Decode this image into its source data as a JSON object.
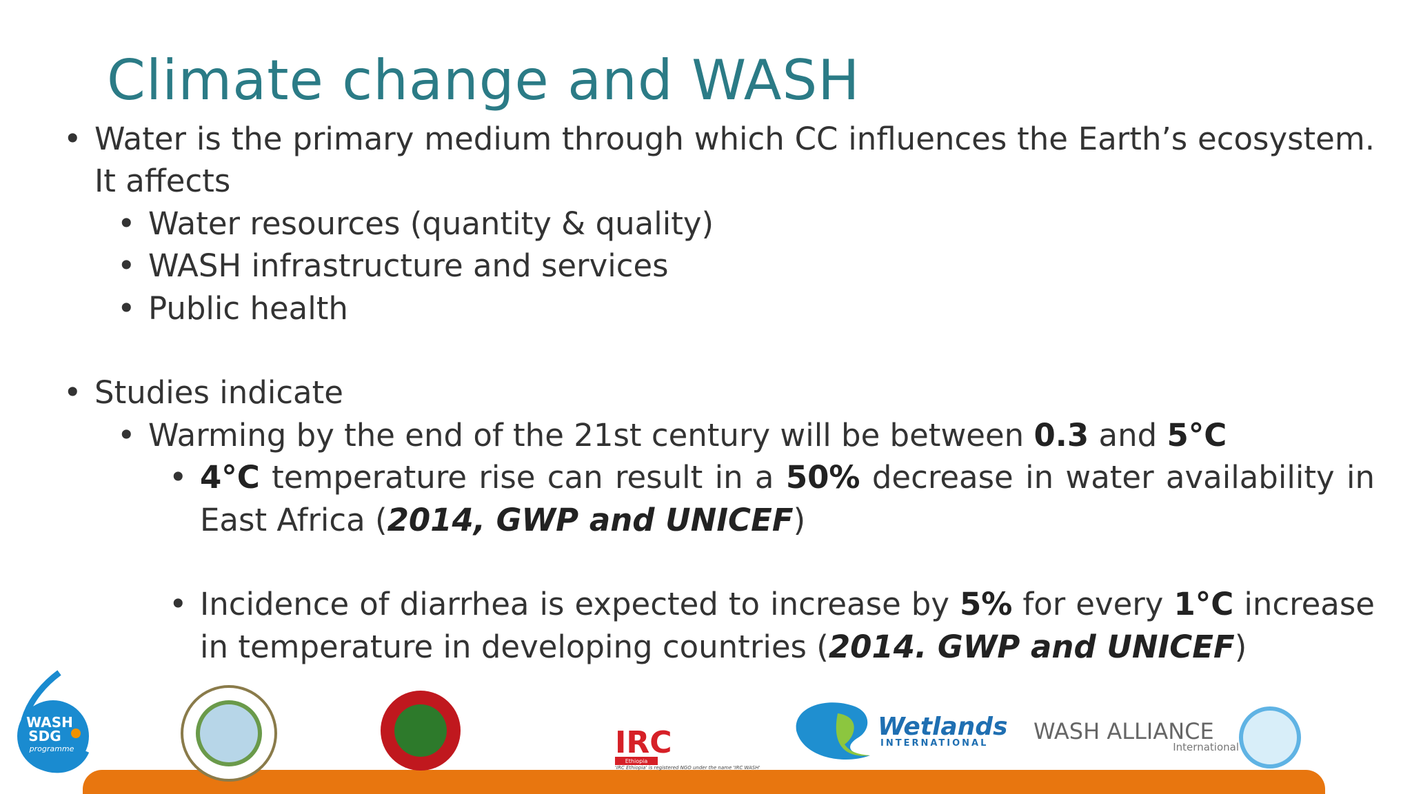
{
  "header": {
    "title": "Climate change and WASH"
  },
  "bullets": [
    {
      "runs": [
        {
          "text": "Water is the primary medium through which CC influences the Earth’s ecosystem. It affects"
        }
      ],
      "sub": [
        {
          "runs": [
            {
              "text": "Water resources (quantity & quality)"
            }
          ]
        },
        {
          "runs": [
            {
              "text": "WASH infrastructure and services"
            }
          ]
        },
        {
          "runs": [
            {
              "text": "Public health"
            }
          ]
        }
      ]
    },
    {
      "runs": [
        {
          "text": "Studies indicate"
        }
      ],
      "sub": [
        {
          "runs": [
            {
              "text": "Warming by the end of the 21st century will be between "
            },
            {
              "text": "0.3",
              "style": "bold"
            },
            {
              "text": " and "
            },
            {
              "text": "5°C",
              "style": "bold"
            }
          ],
          "sub": [
            {
              "runs": [
                {
                  "text": "4°C",
                  "style": "bold"
                },
                {
                  "text": " temperature rise can result in a "
                },
                {
                  "text": "50%",
                  "style": "bold"
                },
                {
                  "text": " decrease in water availability in East Africa ("
                },
                {
                  "text": "2014, GWP and UNICEF",
                  "style": "bold-italic"
                },
                {
                  "text": ")"
                }
              ]
            },
            {
              "runs": [
                {
                  "text": "Incidence of diarrhea is expected to increase by "
                },
                {
                  "text": "5%",
                  "style": "bold"
                },
                {
                  "text": " for every "
                },
                {
                  "text": "1°C",
                  "style": "bold"
                },
                {
                  "text": " increase in temperature in developing countries ("
                },
                {
                  "text": "2014. GWP and UNICEF",
                  "style": "bold-italic"
                },
                {
                  "text": ")"
                }
              ]
            }
          ]
        }
      ]
    }
  ],
  "logos": {
    "wash_sdg": {
      "line1": "WASH",
      "line2": "SDG",
      "line3": "programme"
    },
    "irc": {
      "name": "IRC",
      "sub": "Ethiopia",
      "note": "'IRC Ethiopia' is registered NGO under the name 'IRC WASH'"
    },
    "wetlands": {
      "name": "Wetlands",
      "sub": "INTERNATIONAL"
    },
    "wash_alliance": {
      "name": "WASH ALLIANCE",
      "sub": "International"
    }
  }
}
